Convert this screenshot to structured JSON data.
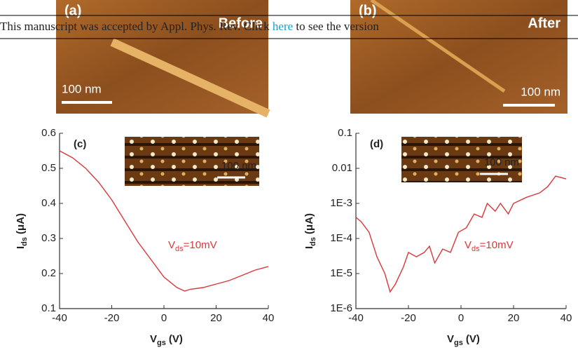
{
  "banner": {
    "before": "This manuscript was accepted by Appl. Phys. Rev. Click",
    "link": "here",
    "after": "to see the version"
  },
  "panels": [
    {
      "label": "(a)",
      "caption": "Before",
      "scale": "100 nm"
    },
    {
      "label": "(b)",
      "caption": "After",
      "scale": "100 nm"
    }
  ],
  "chart_data": [
    {
      "type": "line",
      "label": "(c)",
      "inset_scale": "100 nm",
      "annotation": {
        "main": "V",
        "sub": "ds",
        "rest": "=10mV"
      },
      "xlabel": {
        "main": "V",
        "sub": "gs",
        "unit": "(V)"
      },
      "ylabel": {
        "main": "I",
        "sub": "ds",
        "unit": "(μA)"
      },
      "color": "#d9373b",
      "log_y": false,
      "xlim": [
        -40,
        40
      ],
      "xticks": [
        -40,
        -20,
        0,
        20,
        40
      ],
      "ylim": [
        0.1,
        0.6
      ],
      "yticks": [
        0.1,
        0.2,
        0.3,
        0.4,
        0.5,
        0.6
      ],
      "x": [
        -40,
        -35,
        -30,
        -25,
        -20,
        -15,
        -10,
        -5,
        0,
        5,
        8,
        10,
        15,
        20,
        25,
        30,
        35,
        40
      ],
      "values": [
        0.55,
        0.53,
        0.5,
        0.46,
        0.41,
        0.35,
        0.29,
        0.24,
        0.19,
        0.16,
        0.15,
        0.155,
        0.16,
        0.17,
        0.18,
        0.195,
        0.21,
        0.22
      ]
    },
    {
      "type": "line",
      "label": "(d)",
      "inset_scale": "100 nm",
      "annotation": {
        "main": "V",
        "sub": "ds",
        "rest": "=10mV"
      },
      "xlabel": {
        "main": "V",
        "sub": "gs",
        "unit": "(V)"
      },
      "ylabel": {
        "main": "I",
        "sub": "ds",
        "unit": "(μA)"
      },
      "color": "#d9373b",
      "log_y": true,
      "xlim": [
        -40,
        40
      ],
      "xticks": [
        -40,
        -20,
        0,
        20,
        40
      ],
      "ylim": [
        1e-06,
        0.1
      ],
      "yticks": [
        {
          "value": 1e-06,
          "label": "1E-6"
        },
        {
          "value": 1e-05,
          "label": "1E-5"
        },
        {
          "value": 0.0001,
          "label": "1E-4"
        },
        {
          "value": 0.001,
          "label": "1E-3"
        },
        0.01,
        0.1
      ],
      "x": [
        -40,
        -38,
        -35,
        -32,
        -29,
        -27,
        -25,
        -22,
        -20,
        -17,
        -14,
        -12,
        -10,
        -7,
        -4,
        -1,
        2,
        5,
        8,
        10,
        13,
        15,
        18,
        20,
        25,
        30,
        33,
        36,
        40
      ],
      "values": [
        0.0004,
        0.0003,
        0.00015,
        3e-05,
        1e-05,
        3e-06,
        5e-06,
        1.5e-05,
        4e-05,
        3e-05,
        4e-05,
        6e-05,
        2e-05,
        5e-05,
        4e-05,
        0.00015,
        0.0002,
        0.0005,
        0.0004,
        0.001,
        0.0006,
        0.001,
        0.0005,
        0.001,
        0.0015,
        0.002,
        0.003,
        0.006,
        0.005
      ]
    }
  ]
}
